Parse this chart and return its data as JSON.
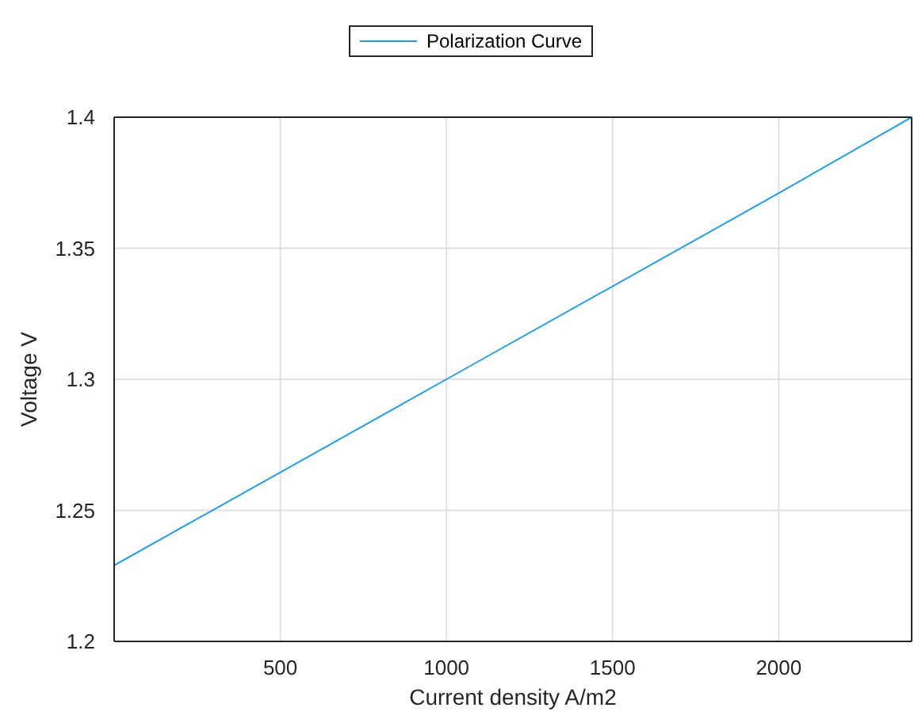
{
  "chart_data": {
    "type": "line",
    "xlabel": "Current density A/m2",
    "ylabel": "Voltage V",
    "x": [
      0,
      1000,
      2000,
      2400
    ],
    "series": [
      {
        "name": "Polarization Curve",
        "color": "#1f9ff0",
        "values": [
          1.229,
          1.3,
          1.371,
          1.4
        ]
      }
    ],
    "xlim": [
      0,
      2400
    ],
    "xticks": [
      500,
      1000,
      1500,
      2000
    ],
    "ylim": [
      1.2,
      1.4
    ],
    "yticks": [
      1.2,
      1.25,
      1.3,
      1.35,
      1.4
    ],
    "grid": true,
    "legend": "top",
    "marker": "none",
    "line_style": "solid"
  }
}
